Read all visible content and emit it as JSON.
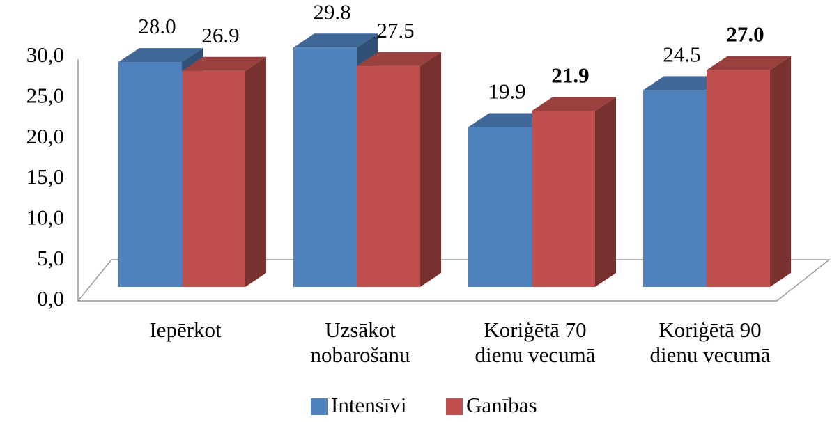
{
  "chart_data": {
    "type": "bar3d",
    "categories": [
      "Iepērkot",
      "Uzsākot nobarošanu",
      "Koriģētā 70 dienu vecumā",
      "Koriģētā 90 dienu vecumā"
    ],
    "series": [
      {
        "name": "Intensīvi",
        "color": "#4f81bd",
        "values": [
          28.0,
          29.8,
          19.9,
          24.5
        ],
        "value_labels": [
          "28.0",
          "29.8",
          "19.9",
          "24.5"
        ],
        "value_label_bold": [
          false,
          false,
          false,
          false
        ]
      },
      {
        "name": "Ganības",
        "color": "#c0504d",
        "values": [
          26.9,
          27.5,
          21.9,
          27.0
        ],
        "value_labels": [
          "26.9",
          "27.5",
          "21.9",
          "27.0"
        ],
        "value_label_bold": [
          false,
          false,
          true,
          true
        ]
      }
    ],
    "ylim": [
      0,
      30
    ],
    "yticks": [
      {
        "value": 0,
        "label": "0,0"
      },
      {
        "value": 5,
        "label": "5,0"
      },
      {
        "value": 10,
        "label": "10,0"
      },
      {
        "value": 15,
        "label": "15,0"
      },
      {
        "value": 20,
        "label": "20,0"
      },
      {
        "value": 25,
        "label": "25,0"
      },
      {
        "value": 30,
        "label": "30,0"
      }
    ],
    "legend": "bottom"
  }
}
